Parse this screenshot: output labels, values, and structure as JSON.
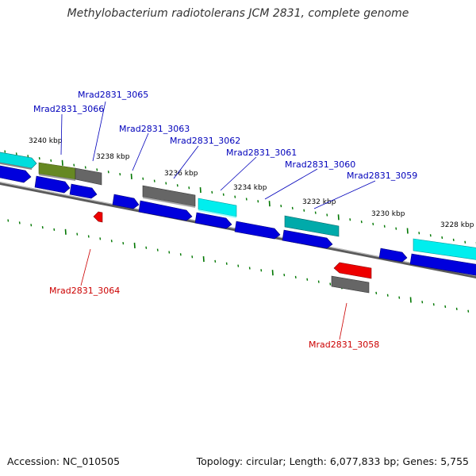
{
  "title": "Methylobacterium radiotolerans JCM 2831, complete genome",
  "footer": {
    "accession": "Accession: NC_010505",
    "topology": "Topology: circular; Length: 6,077,833 bp; Genes: 5,755"
  },
  "colors": {
    "blue_gene": "#0000dd",
    "gray_gene": "#666666",
    "cyan_gene": "#00dddd",
    "teal_gene": "#00aaaa",
    "olive_gene": "#668822",
    "red_gene": "#ee0000",
    "tick": "#007700",
    "axis": "#888888",
    "label_forward": "#0000bb",
    "label_reverse": "#cc0000"
  },
  "scale": {
    "unit": "kbp",
    "tick_labels": [
      "3240 kbp",
      "3238 kbp",
      "3236 kbp",
      "3234 kbp",
      "3232 kbp",
      "3230 kbp",
      "3228 kbp"
    ]
  },
  "genes_labeled": [
    {
      "id": "Mrad2831_3065",
      "strand": "forward"
    },
    {
      "id": "Mrad2831_3066",
      "strand": "forward"
    },
    {
      "id": "Mrad2831_3063",
      "strand": "forward"
    },
    {
      "id": "Mrad2831_3062",
      "strand": "forward"
    },
    {
      "id": "Mrad2831_3061",
      "strand": "forward"
    },
    {
      "id": "Mrad2831_3060",
      "strand": "forward"
    },
    {
      "id": "Mrad2831_3059",
      "strand": "forward"
    },
    {
      "id": "Mrad2831_3064",
      "strand": "reverse"
    },
    {
      "id": "Mrad2831_3058",
      "strand": "reverse"
    }
  ]
}
